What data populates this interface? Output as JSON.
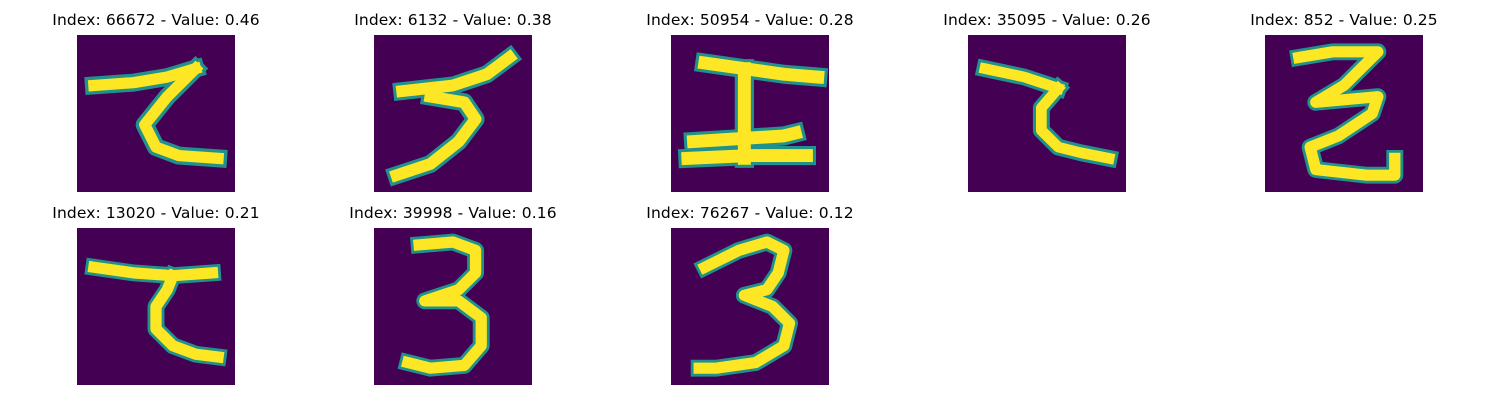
{
  "colors": {
    "background": "#440154",
    "edge": "#21918c",
    "stroke": "#fde725"
  },
  "samples": [
    {
      "title": "Index: 66672 - Value: 0.46",
      "index": 66672,
      "value": 0.46,
      "glyph": "hook-character-1"
    },
    {
      "title": "Index: 6132 - Value: 0.38",
      "index": 6132,
      "value": 0.38,
      "glyph": "slanted-three"
    },
    {
      "title": "Index: 50954 - Value: 0.28",
      "index": 50954,
      "value": 0.28,
      "glyph": "crossbar-character"
    },
    {
      "title": "Index: 35095 - Value: 0.26",
      "index": 35095,
      "value": 0.26,
      "glyph": "hook-character-2"
    },
    {
      "title": "Index: 852 - Value: 0.25",
      "index": 852,
      "value": 0.25,
      "glyph": "zigzag-character"
    },
    {
      "title": "Index: 13020 - Value: 0.21",
      "index": 13020,
      "value": 0.21,
      "glyph": "hook-character-3"
    },
    {
      "title": "Index: 39998 - Value: 0.16",
      "index": 39998,
      "value": 0.16,
      "glyph": "three-upright"
    },
    {
      "title": "Index: 76267 - Value: 0.12",
      "index": 76267,
      "value": 0.12,
      "glyph": "three-slanted-tail"
    }
  ]
}
